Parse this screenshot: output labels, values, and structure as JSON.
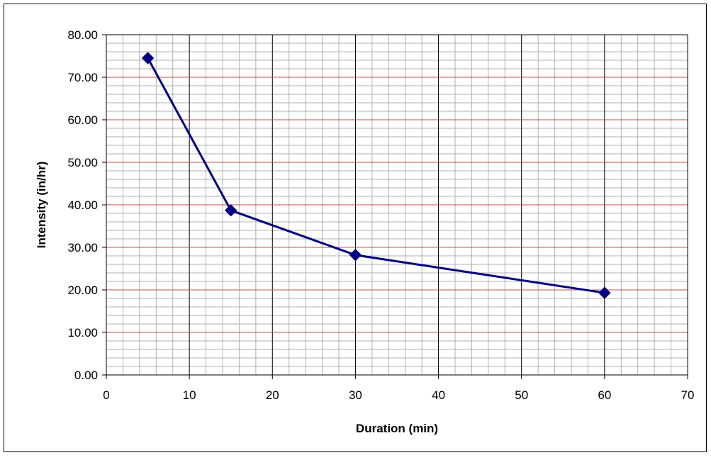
{
  "chart_data": {
    "type": "line",
    "title": "",
    "xlabel": "Duration (min)",
    "ylabel": "Intensity (in/hr)",
    "xlim": [
      0,
      70
    ],
    "ylim": [
      0,
      80
    ],
    "x_ticks": [
      0,
      10,
      20,
      30,
      40,
      50,
      60,
      70
    ],
    "x_tick_labels": [
      "0",
      "10",
      "20",
      "30",
      "40",
      "50",
      "60",
      "70"
    ],
    "y_ticks": [
      0,
      10,
      20,
      30,
      40,
      50,
      60,
      70,
      80
    ],
    "y_tick_labels": [
      "0.00",
      "10.00",
      "20.00",
      "30.00",
      "40.00",
      "50.00",
      "60.00",
      "70.00",
      "80.00"
    ],
    "grid": true,
    "legend": "none",
    "series": [
      {
        "x": [
          5,
          15,
          30,
          60
        ],
        "values": [
          74.5,
          38.7,
          28.2,
          19.3
        ],
        "color": "#000080",
        "marker": "diamond"
      }
    ],
    "colors": {
      "series_line": "#000080",
      "major_horizontal_grid": "#c0504d",
      "major_vertical_grid": "#000000",
      "minor_grid": "#b0b0b0",
      "frame": "#000000",
      "background": "#ffffff"
    }
  }
}
